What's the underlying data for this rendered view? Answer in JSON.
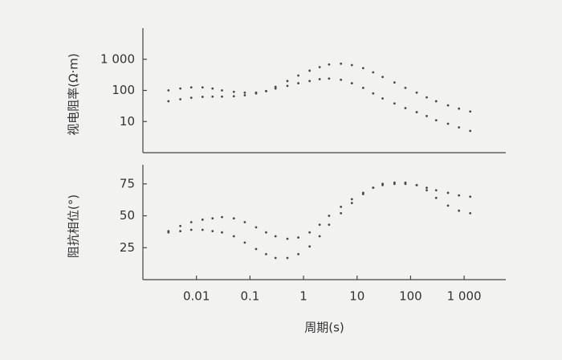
{
  "chart_data": [
    {
      "type": "scatter",
      "y_label": "视电阻率(Ω·m)",
      "log_x": true,
      "log_y": true,
      "xlim": [
        0.001,
        6000
      ],
      "ylim": [
        1,
        10000
      ],
      "yticks": [
        10,
        100,
        {
          "value": 1000,
          "label": "1 000"
        }
      ],
      "x": [
        0.003,
        0.005,
        0.008,
        0.013,
        0.02,
        0.03,
        0.05,
        0.08,
        0.13,
        0.2,
        0.3,
        0.5,
        0.8,
        1.3,
        2,
        3,
        5,
        8,
        13,
        20,
        30,
        50,
        80,
        130,
        200,
        300,
        500,
        800,
        1300
      ],
      "series": [
        {
          "color": "#4a4a4a",
          "values": [
            100,
            115,
            125,
            125,
            115,
            100,
            90,
            85,
            85,
            95,
            130,
            200,
            300,
            430,
            560,
            680,
            720,
            650,
            520,
            380,
            270,
            180,
            120,
            85,
            60,
            45,
            33,
            26,
            21
          ]
        },
        {
          "color": "#4a4a4a",
          "values": [
            45,
            52,
            58,
            62,
            63,
            63,
            65,
            70,
            80,
            95,
            115,
            140,
            170,
            200,
            230,
            240,
            220,
            170,
            120,
            80,
            55,
            38,
            27,
            20,
            15,
            11,
            8.5,
            6.5,
            5
          ]
        }
      ]
    },
    {
      "type": "scatter",
      "y_label": "阻抗相位(°)",
      "x_label": "周期(s)",
      "log_x": true,
      "log_y": false,
      "xlim": [
        0.001,
        6000
      ],
      "ylim": [
        0,
        90
      ],
      "yticks": [
        25,
        50,
        75
      ],
      "xticks": [
        0.01,
        0.1,
        1,
        10,
        100,
        {
          "value": 1000,
          "label": "1 000"
        }
      ],
      "x": [
        0.003,
        0.005,
        0.008,
        0.013,
        0.02,
        0.03,
        0.05,
        0.08,
        0.13,
        0.2,
        0.3,
        0.5,
        0.8,
        1.3,
        2,
        3,
        5,
        8,
        13,
        20,
        30,
        50,
        80,
        130,
        200,
        300,
        500,
        800,
        1300
      ],
      "series": [
        {
          "color": "#4a4a4a",
          "values": [
            38,
            42,
            45,
            47,
            48,
            49,
            48,
            45,
            41,
            37,
            34,
            32,
            33,
            37,
            43,
            50,
            57,
            63,
            68,
            72,
            74,
            75,
            75,
            74,
            72,
            70,
            68,
            66,
            65
          ]
        },
        {
          "color": "#4a4a4a",
          "values": [
            37,
            38,
            39,
            39,
            38,
            37,
            34,
            29,
            24,
            20,
            17,
            17,
            20,
            26,
            34,
            43,
            52,
            60,
            67,
            72,
            75,
            76,
            76,
            74,
            70,
            64,
            58,
            54,
            52
          ]
        }
      ]
    }
  ]
}
